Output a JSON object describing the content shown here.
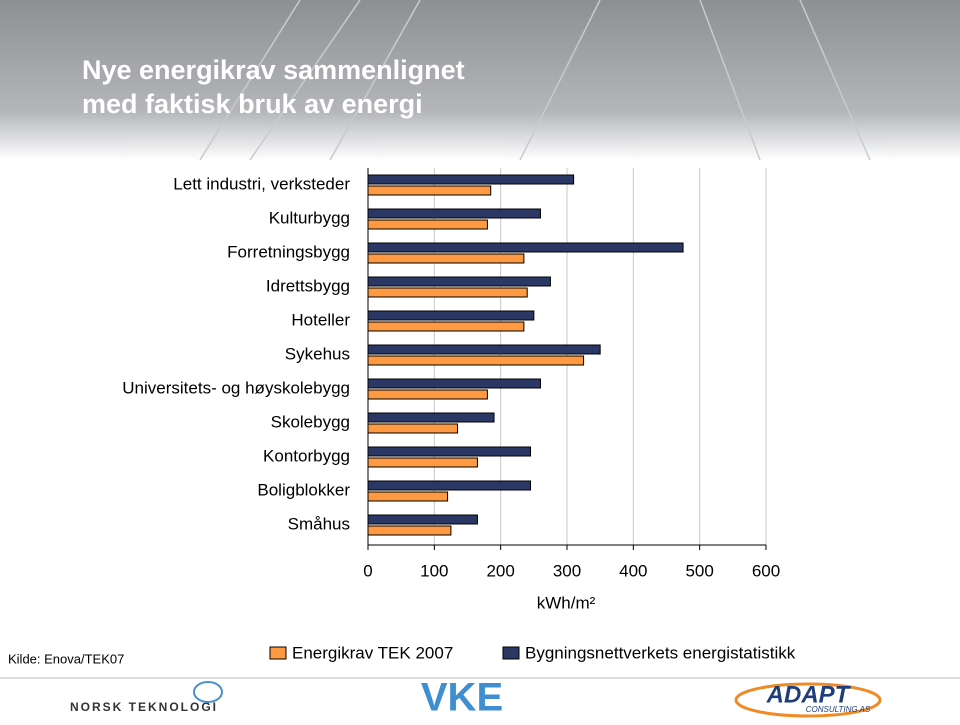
{
  "chart_data": {
    "type": "bar",
    "orientation": "horizontal",
    "title": [
      "Nye energikrav  sammenlignet",
      "med faktisk bruk av energi"
    ],
    "categories": [
      "Lett industri, verksteder",
      "Kulturbygg",
      "Forretningsbygg",
      "Idrettsbygg",
      "Hoteller",
      "Sykehus",
      "Universitets- og høyskolebygg",
      "Skolebygg",
      "Kontorbygg",
      "Boligblokker",
      "Småhus"
    ],
    "series": [
      {
        "name": "Energikrav TEK 2007",
        "color": "#ff9a42",
        "values": [
          185,
          180,
          235,
          240,
          235,
          325,
          180,
          135,
          165,
          120,
          125
        ]
      },
      {
        "name": "Bygningsnettverkets energistatistikk",
        "color": "#2b3866",
        "values": [
          310,
          260,
          475,
          275,
          250,
          350,
          260,
          190,
          245,
          245,
          165
        ]
      }
    ],
    "xlim": [
      0,
      600
    ],
    "xticks": [
      0,
      100,
      200,
      300,
      400,
      500,
      600
    ],
    "xlabel": "kWh/m²",
    "grid": true,
    "legend": "bottom",
    "source": "Kilde: Enova/TEK07",
    "logos": [
      "NORSK TEKNOLOGI",
      "VKE",
      "ADAPT",
      "CONSULTING AS"
    ]
  }
}
